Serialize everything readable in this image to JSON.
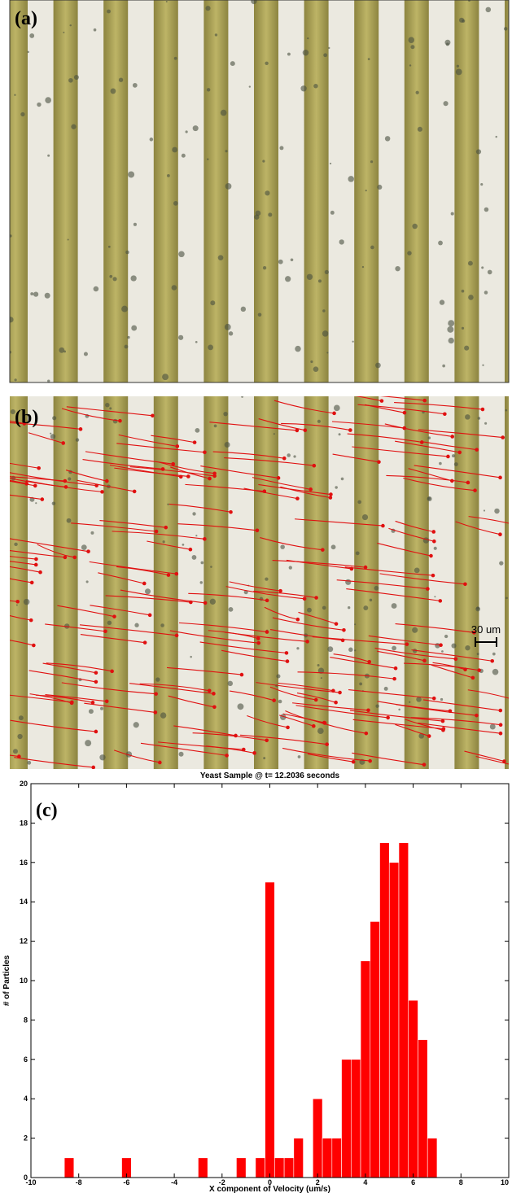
{
  "panel_labels": [
    "(a)",
    "(b)",
    "(c)"
  ],
  "scale_bar": "30 um",
  "chart_data": {
    "type": "histogram",
    "title": "Yeast Sample @ t= 12.2036 seconds",
    "x_label": "X component of Velocity (um/s)",
    "y_label": "# of Particles",
    "color": "#ff0000",
    "bins": [
      -8.6,
      -8.2,
      -7.8,
      -7.4,
      -7,
      -6.6,
      -6.2,
      -5.8,
      -5.4,
      -5,
      -4.6,
      -4.2,
      -3.8,
      -3.4,
      -3,
      -2.6,
      -2.2,
      -1.8,
      -1.4,
      -1,
      -0.6,
      -0.2,
      0.2,
      0.6,
      1,
      1.4,
      1.8,
      2.2,
      2.6,
      3,
      3.4,
      3.8,
      4.2,
      4.6,
      5,
      5.4,
      5.8,
      6.2,
      6.6,
      7
    ],
    "values": [
      1,
      0,
      0,
      0,
      0,
      0,
      1,
      0,
      0,
      0,
      0,
      0,
      0,
      0,
      1,
      0,
      0,
      0,
      1,
      0,
      1,
      15,
      1,
      1,
      2,
      0,
      4,
      2,
      2,
      6,
      6,
      11,
      13,
      17,
      16,
      17,
      9,
      7,
      2
    ],
    "xlim": [
      -10,
      10
    ],
    "xticks": [
      -10,
      -8,
      -6,
      -4,
      -2,
      0,
      2,
      4,
      6,
      8,
      10
    ],
    "ylim": [
      0,
      20
    ],
    "yticks": [
      0,
      2,
      4,
      6,
      8,
      10,
      12,
      14,
      16,
      18,
      20
    ]
  }
}
